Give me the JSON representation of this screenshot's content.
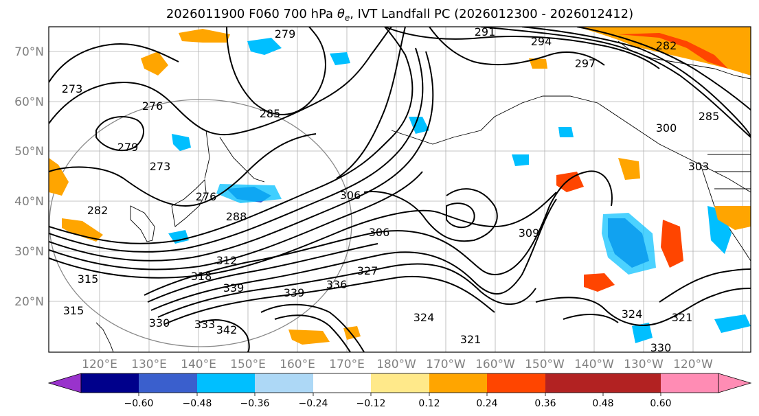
{
  "title_main": "2026011900 F060 700 hPa",
  "title_symbol": "θ",
  "title_subscript": "e",
  "title_rest": ", IVT Landfall PC (2026012300 - 2026012412)",
  "lat_labels": [
    "70°N",
    "60°N",
    "50°N",
    "40°N",
    "30°N",
    "20°N"
  ],
  "lon_labels": [
    "120°E",
    "130°E",
    "140°E",
    "150°E",
    "160°E",
    "170°E",
    "180°W",
    "170°W",
    "160°W",
    "150°W",
    "140°W",
    "130°W",
    "120°W"
  ],
  "contour_labels": [
    "291",
    "294",
    "297",
    "279",
    "285",
    "273",
    "276",
    "279",
    "273",
    "276",
    "282",
    "288",
    "306",
    "306",
    "309",
    "312",
    "315",
    "318",
    "327",
    "330",
    "333",
    "336",
    "339",
    "339",
    "315",
    "342",
    "324",
    "321",
    "324",
    "321",
    "330",
    "300",
    "303",
    "285",
    "282"
  ],
  "colorbar": {
    "colors": [
      "#9933cc",
      "#00008b",
      "#3a5fcd",
      "#00bfff",
      "#add8f6",
      "#ffffff",
      "#ffe98a",
      "#ffa500",
      "#ff4500",
      "#b22222",
      "#ff8cb4"
    ],
    "tick_labels": [
      "−0.60",
      "−0.48",
      "−0.36",
      "−0.24",
      "−0.12",
      "0.12",
      "0.24",
      "0.36",
      "0.48",
      "0.60"
    ]
  }
}
